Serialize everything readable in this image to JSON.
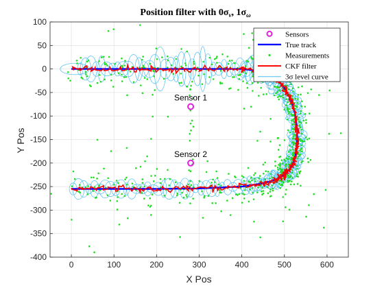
{
  "chart_data": {
    "type": "line",
    "title": "Position filter with 0σ_v, 1σ_ω",
    "xlabel": "X Pos",
    "ylabel": "Y Pos",
    "xlim": [
      -50,
      650
    ],
    "ylim": [
      -400,
      100
    ],
    "xticks": [
      0,
      100,
      200,
      300,
      400,
      500,
      600
    ],
    "yticks": [
      100,
      50,
      0,
      -50,
      -100,
      -150,
      -200,
      -250,
      -300,
      -350,
      -400
    ],
    "grid": true,
    "legend_position": "top-right",
    "legend": [
      "Sensors",
      "True track",
      "Measurements",
      "CKF filter",
      "3σ level curve"
    ],
    "colors": {
      "sensors": "#e020e0",
      "true_track": "#0000ff",
      "measurements": "#22dd22",
      "ckf": "#ff0000",
      "level_curve": "#4dbeee"
    },
    "sensors": [
      {
        "label": "Sensor 1",
        "x": 280,
        "y": -80
      },
      {
        "label": "Sensor 2",
        "x": 280,
        "y": -200
      }
    ],
    "true_track": {
      "x": [
        0,
        100,
        200,
        300,
        400,
        450,
        480,
        500,
        515,
        525,
        530,
        530,
        525,
        515,
        500,
        480,
        450,
        400,
        300,
        200,
        100,
        0
      ],
      "y": [
        0,
        0,
        0,
        0,
        0,
        -5,
        -20,
        -40,
        -65,
        -95,
        -130,
        -160,
        -190,
        -210,
        -225,
        -235,
        -243,
        -250,
        -254,
        -255,
        -255,
        -255
      ]
    }
  }
}
